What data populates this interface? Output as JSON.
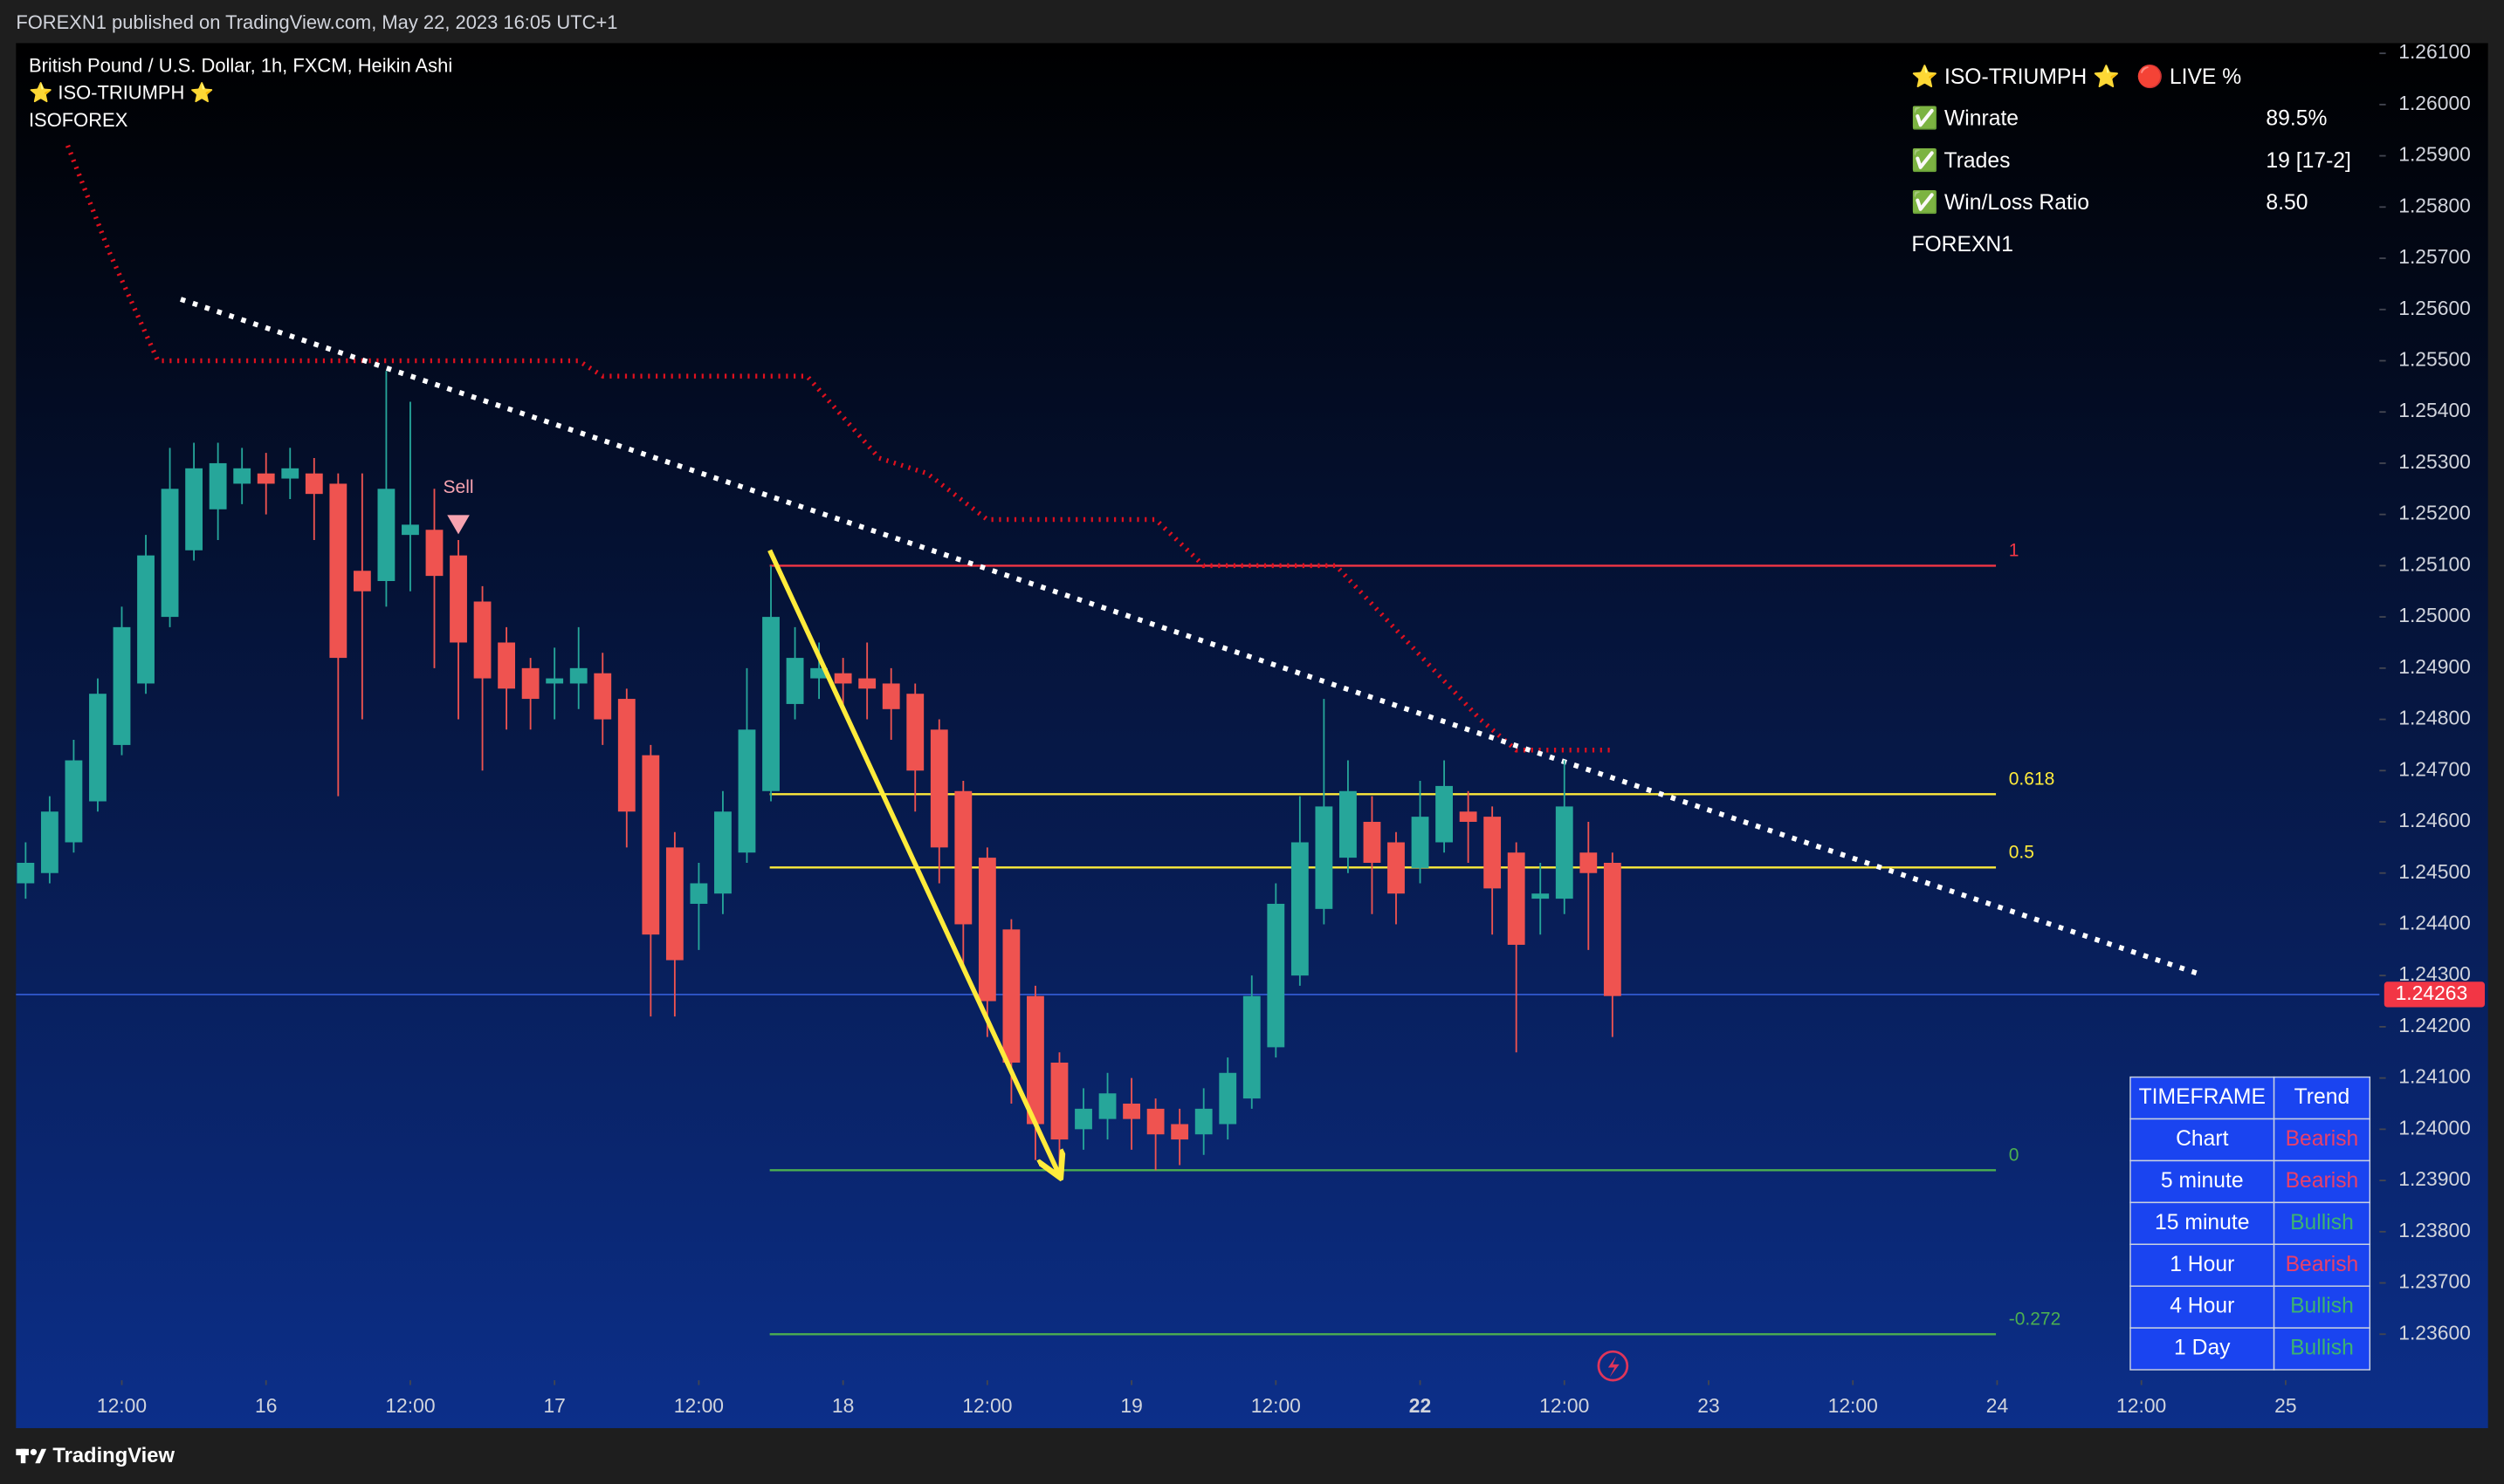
{
  "header": {
    "published": "FOREXN1 published on TradingView.com, May 22, 2023 16:05 UTC+1",
    "logo": "TradingView"
  },
  "chart_data": {
    "type": "candlestick",
    "legend": [
      "British Pound / U.S. Dollar, 1h, FXCM, Heikin Ashi",
      "⭐ ISO-TRIUMPH ⭐",
      "ISOFOREX"
    ],
    "up_color": "#26a69a",
    "down_color": "#ef5350",
    "grid": false,
    "xlim": [
      -8.8,
      187.8
    ],
    "ylim": [
      1.2351,
      1.2612
    ],
    "xticks": [
      {
        "value": 0,
        "label": "12:00"
      },
      {
        "value": 12,
        "label": "16"
      },
      {
        "value": 24,
        "label": "12:00"
      },
      {
        "value": 36,
        "label": "17"
      },
      {
        "value": 48,
        "label": "12:00"
      },
      {
        "value": 60,
        "label": "18"
      },
      {
        "value": 72,
        "label": "12:00"
      },
      {
        "value": 84,
        "label": "19"
      },
      {
        "value": 96,
        "label": "12:00"
      },
      {
        "value": 108,
        "label": "22"
      },
      {
        "value": 120,
        "label": "12:00"
      },
      {
        "value": 132,
        "label": "23"
      },
      {
        "value": 144,
        "label": "12:00"
      },
      {
        "value": 156,
        "label": "24"
      },
      {
        "value": 168,
        "label": "12:00"
      },
      {
        "value": 180,
        "label": "25"
      }
    ],
    "yticks": [
      {
        "value": 1.261,
        "label": "1.26100"
      },
      {
        "value": 1.26,
        "label": "1.26000"
      },
      {
        "value": 1.259,
        "label": "1.25900"
      },
      {
        "value": 1.258,
        "label": "1.25800"
      },
      {
        "value": 1.257,
        "label": "1.25700"
      },
      {
        "value": 1.256,
        "label": "1.25600"
      },
      {
        "value": 1.255,
        "label": "1.25500"
      },
      {
        "value": 1.254,
        "label": "1.25400"
      },
      {
        "value": 1.253,
        "label": "1.25300"
      },
      {
        "value": 1.252,
        "label": "1.25200"
      },
      {
        "value": 1.251,
        "label": "1.25100"
      },
      {
        "value": 1.25,
        "label": "1.25000"
      },
      {
        "value": 1.249,
        "label": "1.24900"
      },
      {
        "value": 1.248,
        "label": "1.24800"
      },
      {
        "value": 1.247,
        "label": "1.24700"
      },
      {
        "value": 1.246,
        "label": "1.24600"
      },
      {
        "value": 1.245,
        "label": "1.24500"
      },
      {
        "value": 1.244,
        "label": "1.24400"
      },
      {
        "value": 1.243,
        "label": "1.24300"
      },
      {
        "value": 1.242,
        "label": "1.24200"
      },
      {
        "value": 1.241,
        "label": "1.24100"
      },
      {
        "value": 1.24,
        "label": "1.24000"
      },
      {
        "value": 1.239,
        "label": "1.23900"
      },
      {
        "value": 1.238,
        "label": "1.23800"
      },
      {
        "value": 1.237,
        "label": "1.23700"
      },
      {
        "value": 1.236,
        "label": "1.23600"
      }
    ],
    "x": [
      -8,
      -6,
      -4,
      -2,
      0,
      2,
      4,
      6,
      8,
      10,
      12,
      14,
      16,
      18,
      20,
      22,
      24,
      26,
      28,
      30,
      32,
      34,
      36,
      38,
      40,
      42,
      44,
      46,
      48,
      50,
      52,
      54,
      56,
      58,
      60,
      62,
      64,
      66,
      68,
      70,
      72,
      74,
      76,
      78,
      80,
      82,
      84,
      86,
      88,
      90,
      92,
      94,
      96,
      98,
      100,
      102,
      104,
      106,
      108,
      110,
      112,
      114,
      116,
      118,
      120,
      122,
      124
    ],
    "open": [
      1.2448,
      1.245,
      1.2456,
      1.2464,
      1.2475,
      1.2487,
      1.25,
      1.2513,
      1.2521,
      1.2526,
      1.2528,
      1.2527,
      1.2528,
      1.2526,
      1.2509,
      1.2507,
      1.2516,
      1.2517,
      1.2512,
      1.2503,
      1.2495,
      1.249,
      1.2487,
      1.2487,
      1.2489,
      1.2484,
      1.2473,
      1.2455,
      1.2444,
      1.2446,
      1.2454,
      1.2466,
      1.2483,
      1.2488,
      1.2489,
      1.2488,
      1.2487,
      1.2485,
      1.2478,
      1.2466,
      1.2453,
      1.2439,
      1.2426,
      1.2413,
      1.24,
      1.2402,
      1.2405,
      1.2404,
      1.2401,
      1.2399,
      1.2401,
      1.2406,
      1.2416,
      1.243,
      1.2443,
      1.2453,
      1.246,
      1.2456,
      1.2451,
      1.2456,
      1.2462,
      1.2461,
      1.2454,
      1.2445,
      1.2445,
      1.2454,
      1.2452
    ],
    "high": [
      1.2456,
      1.2465,
      1.2476,
      1.2488,
      1.2502,
      1.2516,
      1.2533,
      1.2534,
      1.2534,
      1.2533,
      1.2532,
      1.2533,
      1.2531,
      1.2528,
      1.2528,
      1.2548,
      1.2542,
      1.2525,
      1.2515,
      1.2506,
      1.2498,
      1.2492,
      1.2494,
      1.2498,
      1.2493,
      1.2486,
      1.2475,
      1.2458,
      1.2452,
      1.2466,
      1.249,
      1.251,
      1.2498,
      1.2495,
      1.2492,
      1.2495,
      1.249,
      1.2487,
      1.248,
      1.2468,
      1.2455,
      1.2441,
      1.2428,
      1.2415,
      1.2408,
      1.2411,
      1.241,
      1.2406,
      1.2404,
      1.2408,
      1.2414,
      1.243,
      1.2448,
      1.2465,
      1.2484,
      1.2472,
      1.2465,
      1.2458,
      1.2468,
      1.2472,
      1.2466,
      1.2463,
      1.2456,
      1.2452,
      1.2472,
      1.246,
      1.2454
    ],
    "low": [
      1.2445,
      1.2448,
      1.2454,
      1.2462,
      1.2473,
      1.2485,
      1.2498,
      1.2511,
      1.2515,
      1.2522,
      1.252,
      1.2523,
      1.2515,
      1.2465,
      1.248,
      1.2502,
      1.2505,
      1.249,
      1.248,
      1.247,
      1.2478,
      1.2478,
      1.248,
      1.2482,
      1.2475,
      1.2455,
      1.2422,
      1.2422,
      1.2435,
      1.2442,
      1.2452,
      1.2464,
      1.248,
      1.2484,
      1.2482,
      1.248,
      1.2476,
      1.2462,
      1.2448,
      1.2432,
      1.2418,
      1.2405,
      1.2394,
      1.2392,
      1.2396,
      1.2398,
      1.2396,
      1.2392,
      1.2393,
      1.2395,
      1.2398,
      1.2404,
      1.2414,
      1.2428,
      1.244,
      1.245,
      1.2442,
      1.244,
      1.2448,
      1.2454,
      1.2452,
      1.2438,
      1.2415,
      1.2438,
      1.2442,
      1.2435,
      1.2418
    ],
    "close": [
      1.2452,
      1.2462,
      1.2472,
      1.2485,
      1.2498,
      1.2512,
      1.2525,
      1.2529,
      1.253,
      1.2529,
      1.2526,
      1.2529,
      1.2524,
      1.2492,
      1.2505,
      1.2525,
      1.2518,
      1.2508,
      1.2495,
      1.2488,
      1.2486,
      1.2484,
      1.2488,
      1.249,
      1.248,
      1.2462,
      1.2438,
      1.2433,
      1.2448,
      1.2462,
      1.2478,
      1.25,
      1.2492,
      1.249,
      1.2487,
      1.2486,
      1.2482,
      1.247,
      1.2455,
      1.244,
      1.2425,
      1.2413,
      1.2401,
      1.2398,
      1.2404,
      1.2407,
      1.2402,
      1.2399,
      1.2398,
      1.2404,
      1.2411,
      1.2426,
      1.2444,
      1.2456,
      1.2463,
      1.2466,
      1.2452,
      1.2446,
      1.2461,
      1.2467,
      1.246,
      1.2447,
      1.2436,
      1.2446,
      1.2463,
      1.245,
      1.2426
    ],
    "last_price": 1.24263,
    "last_price_color": "#f23645",
    "trail": {
      "color": "#e0101e",
      "x": [
        -4.5,
        -1,
        3,
        38,
        40,
        57,
        63,
        67,
        72,
        86,
        90,
        101,
        113,
        116,
        124
      ],
      "values": [
        1.2592,
        1.2571,
        1.255,
        1.255,
        1.2547,
        1.2547,
        1.2531,
        1.2528,
        1.2519,
        1.2519,
        1.251,
        1.251,
        1.248,
        1.2474,
        1.2474
      ]
    },
    "trendline": {
      "color": "#ffffff",
      "x": [
        4.9,
        173.2
      ],
      "values": [
        1.2562,
        1.243
      ]
    },
    "arrow": {
      "color": "#ffeb3b",
      "x": [
        53.9,
        78
      ],
      "values": [
        1.2513,
        1.2391
      ]
    },
    "fib": {
      "x": [
        53.9,
        155.9
      ],
      "levels": [
        {
          "ratio": 1,
          "price": 1.251,
          "color": "#f23645"
        },
        {
          "ratio": 0.618,
          "price": 1.24654,
          "color": "#ffeb3b"
        },
        {
          "ratio": 0.5,
          "price": 1.24511,
          "color": "#ffeb3b"
        },
        {
          "ratio": 0,
          "price": 1.2392,
          "color": "#4caf50"
        },
        {
          "ratio": -0.272,
          "price": 1.236,
          "color": "#4caf50"
        }
      ]
    },
    "signals": [
      {
        "label": "Sell",
        "x": 28,
        "price": 1.2518,
        "color": "#f7a3b0"
      }
    ]
  },
  "info_panel": {
    "title": "⭐ ISO-TRIUMPH ⭐",
    "status": "🔴 LIVE %",
    "rows": [
      [
        "✅ Winrate",
        "89.5%"
      ],
      [
        "✅ Trades",
        "19 [17-2]"
      ],
      [
        "✅ Win/Loss Ratio",
        "8.50"
      ]
    ],
    "footer": "FOREXN1"
  },
  "trend_table": {
    "header": [
      "TIMEFRAME",
      "Trend"
    ],
    "trend_colors": {
      "Bearish": "#e8406a",
      "Bullish": "#3cb371"
    },
    "rows": [
      [
        "Chart",
        "Bearish"
      ],
      [
        "5 minute",
        "Bearish"
      ],
      [
        "15 minute",
        "Bullish"
      ],
      [
        "1 Hour",
        "Bearish"
      ],
      [
        "4 Hour",
        "Bullish"
      ],
      [
        "1 Day",
        "Bullish"
      ]
    ]
  }
}
